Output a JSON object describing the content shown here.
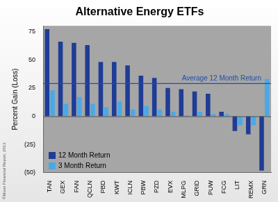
{
  "chart_data": {
    "type": "bar",
    "title": "Alternative Energy ETFs",
    "y_label": "Percent Gain (Loss)",
    "categories": [
      "TAN",
      "GEX",
      "FAN",
      "QCLN",
      "PBD",
      "KWT",
      "ICLN",
      "PBW",
      "PZD",
      "EVX",
      "MLPG",
      "GRID",
      "PUW",
      "FCG",
      "LIT",
      "REMX",
      "GRN"
    ],
    "series": [
      {
        "name": "12 Month Return",
        "color": "#1f3c96",
        "values": [
          77,
          66,
          65,
          63,
          48,
          48,
          45,
          36,
          34,
          25,
          24,
          22,
          20,
          4,
          -13,
          -16,
          -48
        ]
      },
      {
        "name": "3 Month Return",
        "color": "#4ba8e6",
        "values": [
          23,
          11,
          17,
          11,
          8,
          13,
          6,
          9,
          6,
          4,
          1,
          4,
          2,
          2,
          -8,
          -8,
          33
        ]
      }
    ],
    "ylim": [
      -50,
      80
    ],
    "yticks": [
      {
        "value": -50,
        "label": "(50)"
      },
      {
        "value": -25,
        "label": "(25)"
      },
      0,
      25,
      50,
      75
    ],
    "grid": false,
    "legend": "lower left",
    "annotations": [
      {
        "text": "Average 12 Month Return",
        "y": 29,
        "color": "#1f4fa8"
      }
    ],
    "credit": "©Moon Financial Report, 2013"
  }
}
